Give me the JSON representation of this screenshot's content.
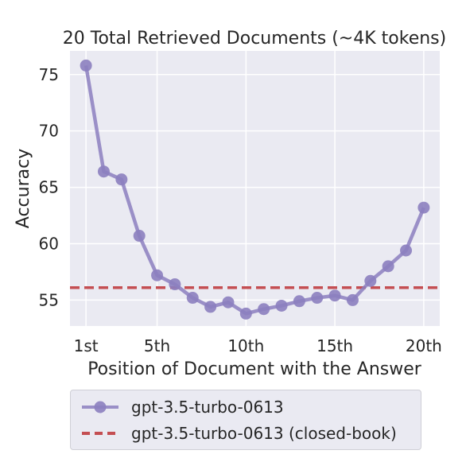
{
  "chart_data": {
    "type": "line",
    "title": "20 Total Retrieved Documents (~4K tokens)",
    "xlabel": "Position of Document with the Answer",
    "ylabel": "Accuracy",
    "x": [
      1,
      2,
      3,
      4,
      5,
      6,
      7,
      8,
      9,
      10,
      11,
      12,
      13,
      14,
      15,
      16,
      17,
      18,
      19,
      20
    ],
    "x_ticks": [
      1,
      5,
      10,
      15,
      20
    ],
    "x_tick_labels": [
      "1st",
      "5th",
      "10th",
      "15th",
      "20th"
    ],
    "y_ticks": [
      55,
      60,
      65,
      70,
      75
    ],
    "xlim": [
      0.1,
      20.9
    ],
    "ylim": [
      52.7,
      77.1
    ],
    "grid": true,
    "legend_position": "below",
    "series": [
      {
        "name": "gpt-3.5-turbo-0613",
        "style": "line-marker",
        "color": "#8c7fbf",
        "values": [
          75.8,
          66.4,
          65.7,
          60.7,
          57.2,
          56.4,
          55.2,
          54.4,
          54.8,
          53.8,
          54.2,
          54.5,
          54.9,
          55.2,
          55.4,
          55.0,
          56.7,
          58.0,
          59.4,
          63.2
        ]
      },
      {
        "name": "gpt-3.5-turbo-0613 (closed-book)",
        "style": "dashed-hline",
        "color": "#c44e52",
        "value": 56.1
      }
    ]
  }
}
